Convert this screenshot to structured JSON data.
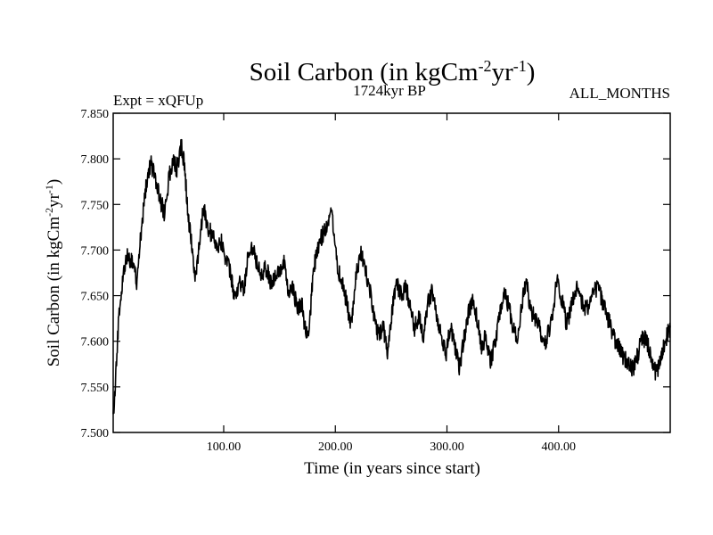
{
  "chart_data": {
    "type": "line",
    "title_main": "Soil Carbon (in kgCm",
    "title_sup1": "-2",
    "title_mid": "yr",
    "title_sup2": "-1",
    "title_end": ")",
    "subtitle_left": "Expt = xQFUp",
    "subtitle_center": "1724kyr BP",
    "subtitle_right": "ALL_MONTHS",
    "xlabel": "Time (in years since start)",
    "ylabel_main": "Soil Carbon (in kgCm",
    "ylabel_sup1": "-2",
    "ylabel_mid": "yr",
    "ylabel_sup2": "-1",
    "ylabel_end": ")",
    "xlim": [
      1,
      500
    ],
    "ylim": [
      7.5,
      7.85
    ],
    "xticks": [
      100,
      200,
      300,
      400
    ],
    "xtick_labels": [
      "100.00",
      "200.00",
      "300.00",
      "400.00"
    ],
    "yticks": [
      7.5,
      7.55,
      7.6,
      7.65,
      7.7,
      7.75,
      7.8,
      7.85
    ],
    "ytick_labels": [
      "7.500",
      "7.550",
      "7.600",
      "7.650",
      "7.700",
      "7.750",
      "7.800",
      "7.850"
    ],
    "series": [
      {
        "name": "Soil Carbon",
        "color": "#000000",
        "x": [
          1,
          3,
          6,
          10,
          14,
          18,
          22,
          25,
          28,
          32,
          35,
          39,
          43,
          47,
          51,
          55,
          58,
          62,
          65,
          68,
          71,
          75,
          78,
          82,
          86,
          90,
          94,
          98,
          102,
          106,
          110,
          114,
          118,
          122,
          126,
          130,
          134,
          138,
          142,
          146,
          150,
          154,
          158,
          162,
          166,
          170,
          174,
          177,
          180,
          184,
          188,
          192,
          196,
          199,
          202,
          206,
          210,
          214,
          219,
          223,
          227,
          231,
          235,
          239,
          243,
          247,
          251,
          255,
          259,
          263,
          267,
          271,
          275,
          279,
          283,
          287,
          291,
          295,
          299,
          303,
          307,
          311,
          315,
          319,
          323,
          327,
          331,
          335,
          339,
          343,
          347,
          351,
          355,
          359,
          363,
          367,
          371,
          375,
          379,
          383,
          387,
          391,
          395,
          399,
          403,
          407,
          411,
          415,
          419,
          423,
          427,
          431,
          435,
          439,
          443,
          447,
          451,
          455,
          459,
          463,
          467,
          471,
          475,
          479,
          483,
          487,
          491,
          495,
          500
        ],
        "y": [
          7.515,
          7.555,
          7.625,
          7.675,
          7.695,
          7.685,
          7.665,
          7.705,
          7.745,
          7.785,
          7.795,
          7.775,
          7.755,
          7.74,
          7.78,
          7.795,
          7.79,
          7.815,
          7.79,
          7.74,
          7.71,
          7.665,
          7.71,
          7.745,
          7.725,
          7.715,
          7.705,
          7.71,
          7.69,
          7.675,
          7.645,
          7.665,
          7.655,
          7.695,
          7.705,
          7.685,
          7.675,
          7.68,
          7.665,
          7.67,
          7.675,
          7.685,
          7.65,
          7.66,
          7.635,
          7.64,
          7.605,
          7.62,
          7.675,
          7.7,
          7.715,
          7.725,
          7.745,
          7.72,
          7.68,
          7.665,
          7.645,
          7.615,
          7.675,
          7.695,
          7.68,
          7.655,
          7.625,
          7.605,
          7.615,
          7.585,
          7.635,
          7.665,
          7.65,
          7.66,
          7.64,
          7.615,
          7.625,
          7.605,
          7.645,
          7.655,
          7.625,
          7.61,
          7.585,
          7.615,
          7.595,
          7.57,
          7.6,
          7.63,
          7.645,
          7.625,
          7.595,
          7.605,
          7.575,
          7.6,
          7.625,
          7.655,
          7.64,
          7.615,
          7.6,
          7.64,
          7.665,
          7.635,
          7.625,
          7.615,
          7.595,
          7.61,
          7.635,
          7.67,
          7.645,
          7.62,
          7.635,
          7.66,
          7.65,
          7.635,
          7.64,
          7.655,
          7.66,
          7.645,
          7.63,
          7.615,
          7.6,
          7.59,
          7.58,
          7.575,
          7.57,
          7.585,
          7.605,
          7.6,
          7.585,
          7.565,
          7.575,
          7.6,
          7.615
        ]
      }
    ]
  }
}
